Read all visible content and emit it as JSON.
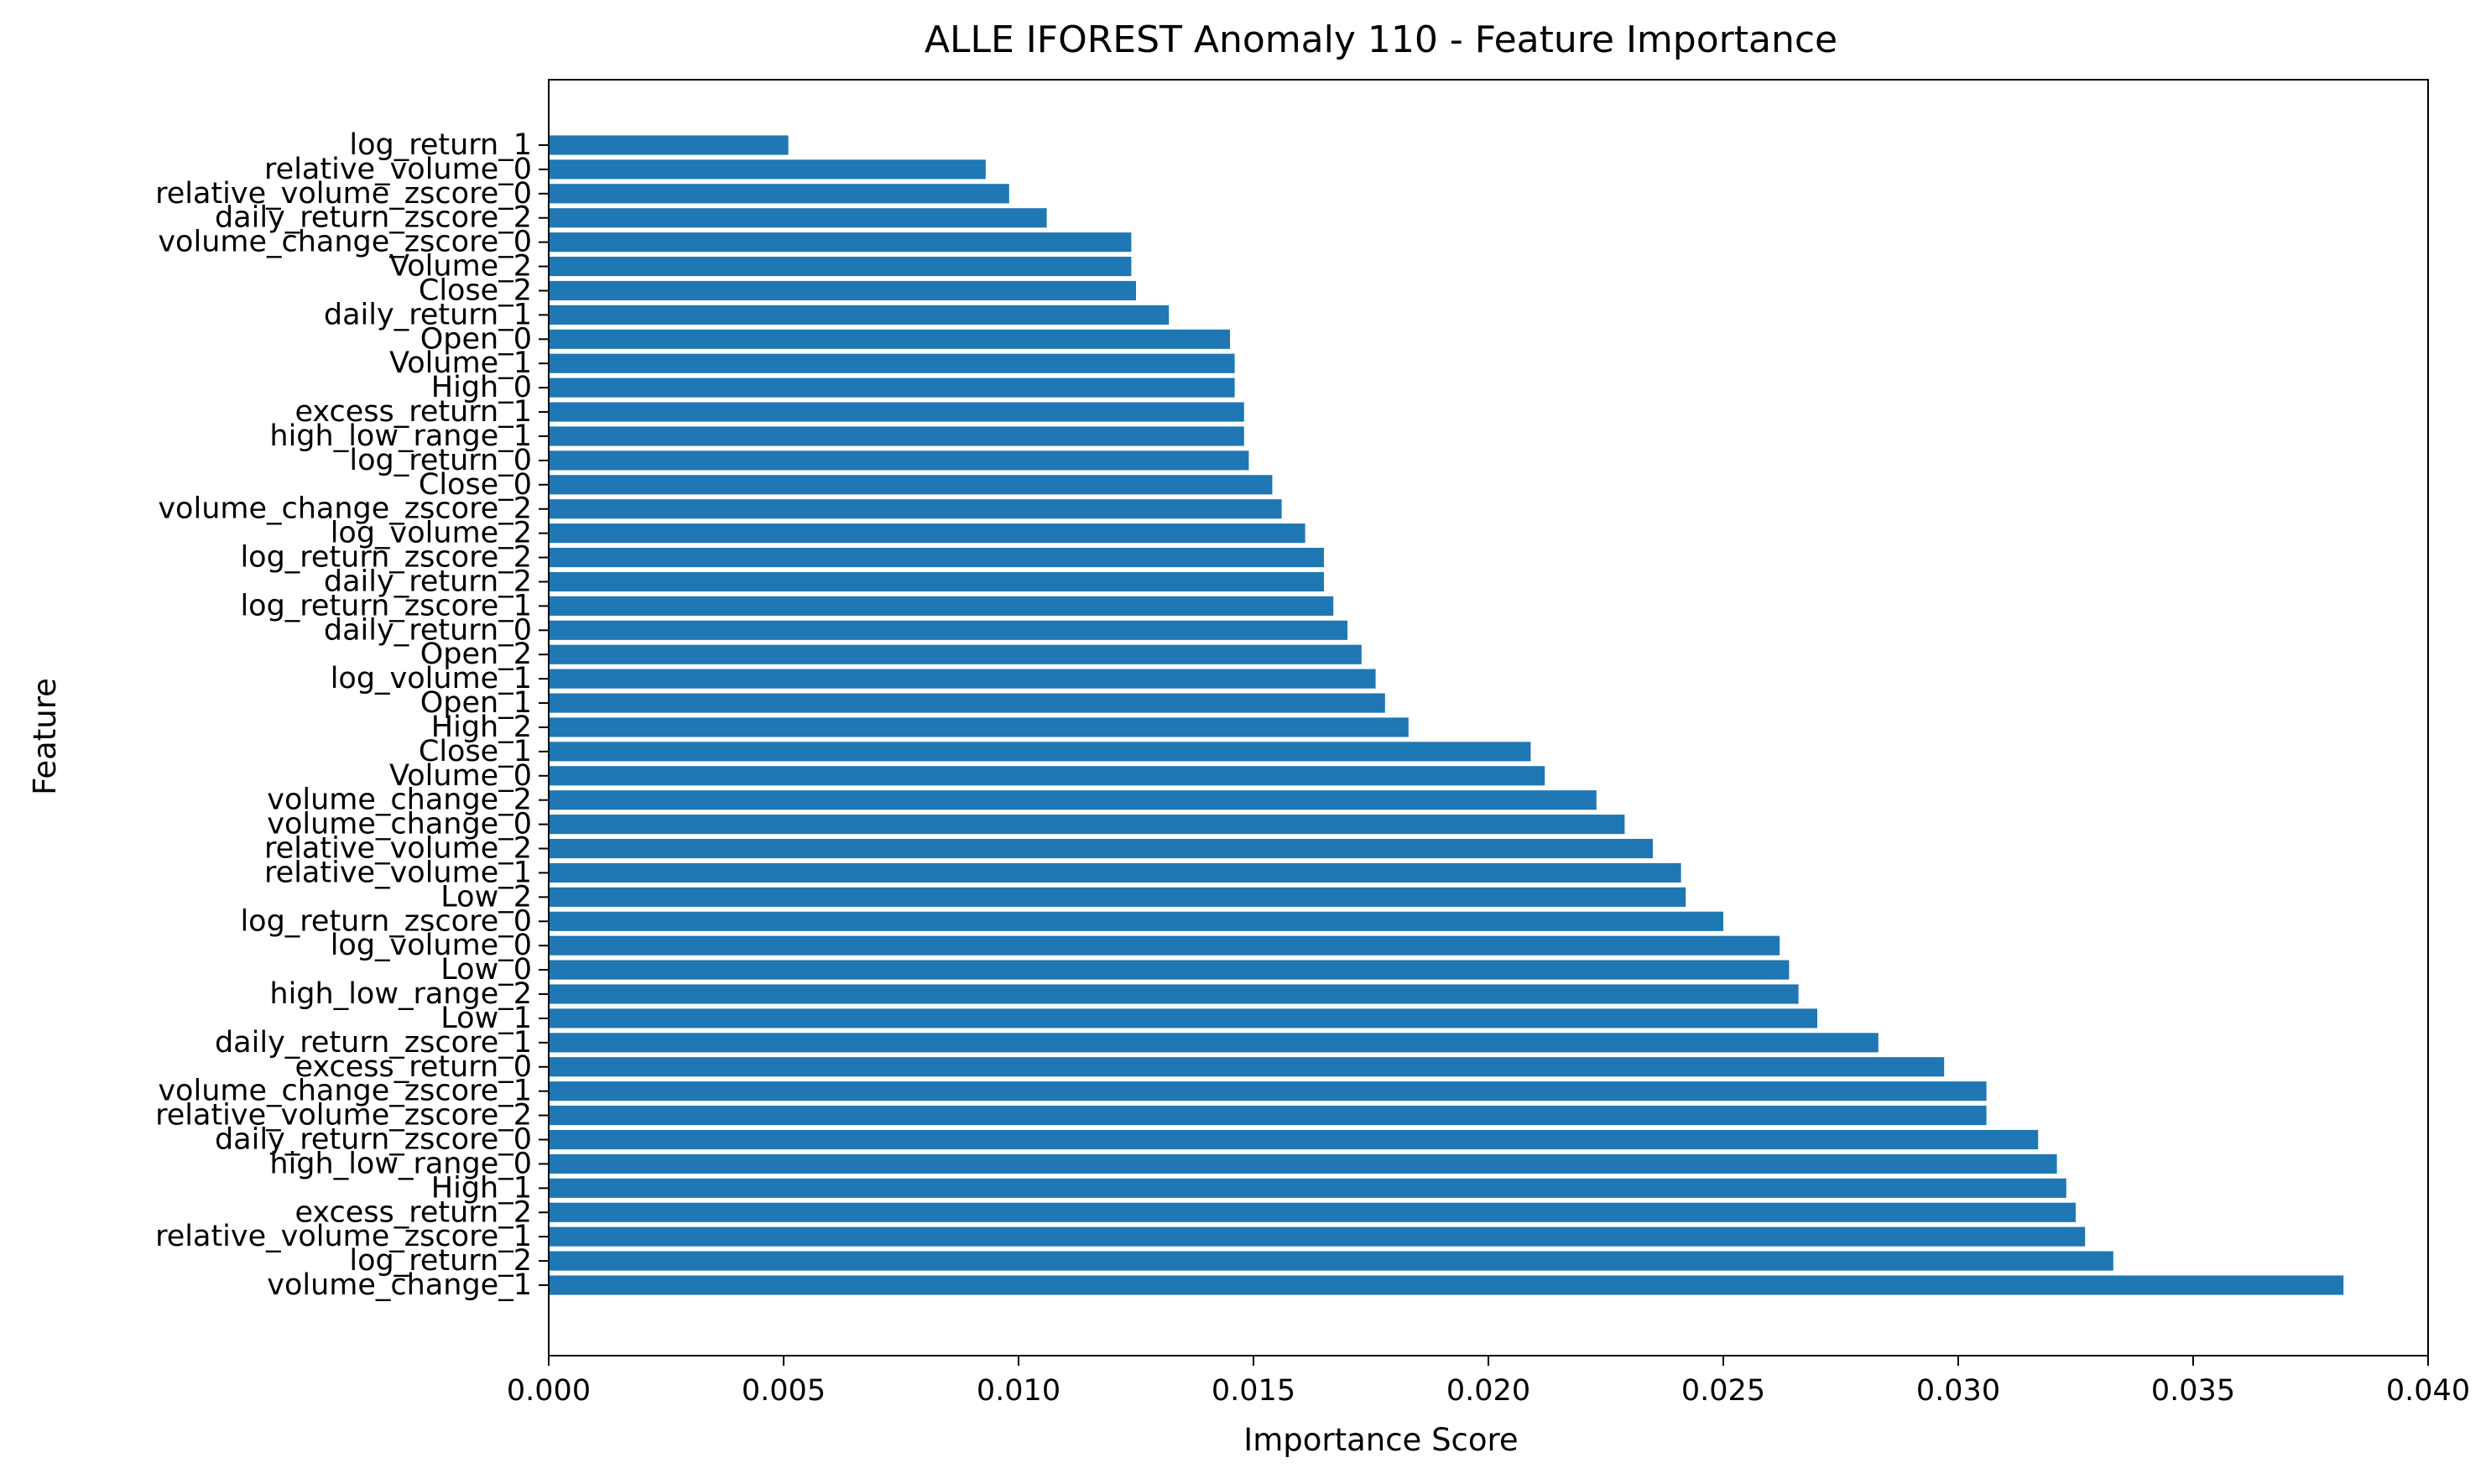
{
  "colors": {
    "bar": "#1f77b4",
    "axis": "#000000",
    "background": "#ffffff"
  },
  "chart_data": {
    "type": "bar",
    "orientation": "horizontal",
    "title": "ALLE IFOREST Anomaly 110 - Feature Importance",
    "xlabel": "Importance Score",
    "ylabel": "Feature",
    "xlim": [
      0.0,
      0.04
    ],
    "xticks": [
      "0.000",
      "0.005",
      "0.010",
      "0.015",
      "0.020",
      "0.025",
      "0.030",
      "0.035",
      "0.040"
    ],
    "grid": false,
    "categories": [
      "log_return_1",
      "relative_volume_0",
      "relative_volume_zscore_0",
      "daily_return_zscore_2",
      "volume_change_zscore_0",
      "Volume_2",
      "Close_2",
      "daily_return_1",
      "Open_0",
      "Volume_1",
      "High_0",
      "excess_return_1",
      "high_low_range_1",
      "log_return_0",
      "Close_0",
      "volume_change_zscore_2",
      "log_volume_2",
      "log_return_zscore_2",
      "daily_return_2",
      "log_return_zscore_1",
      "daily_return_0",
      "Open_2",
      "log_volume_1",
      "Open_1",
      "High_2",
      "Close_1",
      "Volume_0",
      "volume_change_2",
      "volume_change_0",
      "relative_volume_2",
      "relative_volume_1",
      "Low_2",
      "log_return_zscore_0",
      "log_volume_0",
      "Low_0",
      "high_low_range_2",
      "Low_1",
      "daily_return_zscore_1",
      "excess_return_0",
      "volume_change_zscore_1",
      "relative_volume_zscore_2",
      "daily_return_zscore_0",
      "high_low_range_0",
      "High_1",
      "excess_return_2",
      "relative_volume_zscore_1",
      "log_return_2",
      "volume_change_1"
    ],
    "values": [
      0.0051,
      0.0093,
      0.0098,
      0.0106,
      0.0124,
      0.0124,
      0.0125,
      0.0132,
      0.0145,
      0.0146,
      0.0146,
      0.0148,
      0.0148,
      0.0149,
      0.0154,
      0.0156,
      0.0161,
      0.0165,
      0.0165,
      0.0167,
      0.017,
      0.0173,
      0.0176,
      0.0178,
      0.0183,
      0.0209,
      0.0212,
      0.0223,
      0.0229,
      0.0235,
      0.0241,
      0.0242,
      0.025,
      0.0262,
      0.0264,
      0.0266,
      0.027,
      0.0283,
      0.0297,
      0.0306,
      0.0306,
      0.0317,
      0.0321,
      0.0323,
      0.0325,
      0.0327,
      0.0333,
      0.0382
    ]
  }
}
